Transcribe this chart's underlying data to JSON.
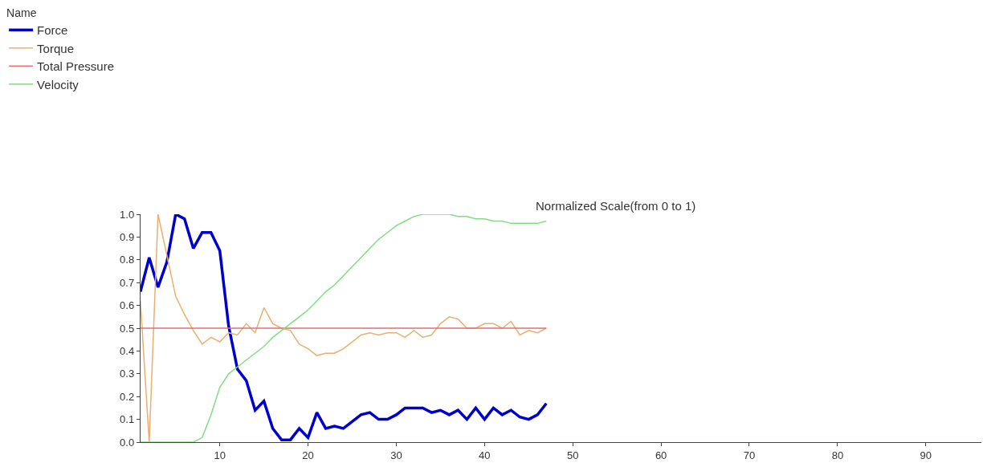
{
  "chart_data": {
    "type": "line",
    "title": "Normalized Scale(from 0 to 1)",
    "legend_title": "Name",
    "legend": "top left",
    "x": [
      1,
      2,
      3,
      4,
      5,
      6,
      7,
      8,
      9,
      10,
      11,
      12,
      13,
      14,
      15,
      16,
      17,
      18,
      19,
      20,
      21,
      22,
      23,
      24,
      25,
      26,
      27,
      28,
      29,
      30,
      31,
      32,
      33,
      34,
      35,
      36,
      37,
      38,
      39,
      40,
      41,
      42,
      43,
      44,
      45,
      46,
      47
    ],
    "xlim": [
      1,
      96.3
    ],
    "xticks": [
      10,
      20,
      30,
      40,
      50,
      60,
      70,
      80,
      90
    ],
    "ylim": [
      0,
      1.0
    ],
    "yticks": [
      {
        "value": 0,
        "label": "0.0"
      },
      {
        "value": 0.1,
        "label": "0.1"
      },
      {
        "value": 0.2,
        "label": "0.2"
      },
      {
        "value": 0.3,
        "label": "0.3"
      },
      {
        "value": 0.4,
        "label": "0.4"
      },
      {
        "value": 0.5,
        "label": "0.5"
      },
      {
        "value": 0.6,
        "label": "0.6"
      },
      {
        "value": 0.7,
        "label": "0.7"
      },
      {
        "value": 0.8,
        "label": "0.8"
      },
      {
        "value": 0.9,
        "label": "0.9"
      },
      {
        "value": 1.0,
        "label": "1.0"
      }
    ],
    "series": [
      {
        "name": "Force",
        "color": "#0000cc",
        "values": [
          0.66,
          0.81,
          0.68,
          0.79,
          1.0,
          0.98,
          0.85,
          0.92,
          0.92,
          0.84,
          0.51,
          0.32,
          0.27,
          0.14,
          0.18,
          0.06,
          0.01,
          0.01,
          0.06,
          0.02,
          0.13,
          0.06,
          0.07,
          0.06,
          0.09,
          0.12,
          0.13,
          0.1,
          0.1,
          0.12,
          0.15,
          0.15,
          0.15,
          0.13,
          0.14,
          0.12,
          0.14,
          0.1,
          0.15,
          0.1,
          0.15,
          0.12,
          0.14,
          0.11,
          0.1,
          0.12,
          0.17
        ]
      },
      {
        "name": "Torque",
        "color": "#e8b070",
        "values": [
          0.62,
          0.0,
          1.0,
          0.82,
          0.64,
          0.56,
          0.49,
          0.43,
          0.46,
          0.44,
          0.48,
          0.47,
          0.52,
          0.48,
          0.59,
          0.52,
          0.5,
          0.49,
          0.43,
          0.41,
          0.38,
          0.39,
          0.39,
          0.41,
          0.44,
          0.47,
          0.48,
          0.47,
          0.48,
          0.48,
          0.46,
          0.49,
          0.46,
          0.47,
          0.52,
          0.55,
          0.54,
          0.5,
          0.5,
          0.52,
          0.52,
          0.5,
          0.53,
          0.47,
          0.49,
          0.48,
          0.5
        ]
      },
      {
        "name": "Total Pressure",
        "color": "#e07070",
        "values": [
          0.5,
          0.5,
          0.5,
          0.5,
          0.5,
          0.5,
          0.5,
          0.5,
          0.5,
          0.5,
          0.5,
          0.5,
          0.5,
          0.5,
          0.5,
          0.5,
          0.5,
          0.5,
          0.5,
          0.5,
          0.5,
          0.5,
          0.5,
          0.5,
          0.5,
          0.5,
          0.5,
          0.5,
          0.5,
          0.5,
          0.5,
          0.5,
          0.5,
          0.5,
          0.5,
          0.5,
          0.5,
          0.5,
          0.5,
          0.5,
          0.5,
          0.5,
          0.5,
          0.5,
          0.5,
          0.5,
          0.5
        ]
      },
      {
        "name": "Velocity",
        "color": "#80dd80",
        "values": [
          0,
          0,
          0,
          0,
          0,
          0,
          0,
          0.02,
          0.12,
          0.24,
          0.3,
          0.33,
          0.36,
          0.39,
          0.42,
          0.46,
          0.49,
          0.52,
          0.55,
          0.58,
          0.62,
          0.66,
          0.69,
          0.73,
          0.77,
          0.81,
          0.85,
          0.89,
          0.92,
          0.95,
          0.97,
          0.99,
          1.0,
          1.0,
          1.0,
          1.0,
          0.99,
          0.99,
          0.98,
          0.98,
          0.97,
          0.97,
          0.96,
          0.96,
          0.96,
          0.96,
          0.97
        ]
      }
    ]
  }
}
